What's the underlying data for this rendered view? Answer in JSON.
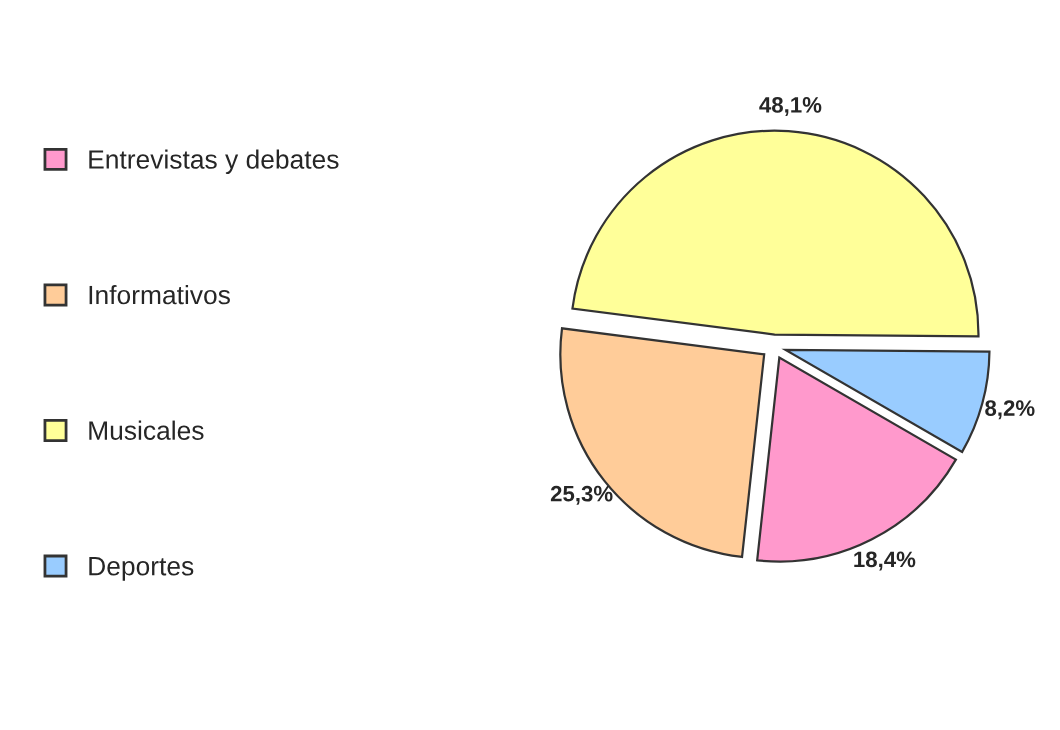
{
  "chart_data": {
    "type": "pie",
    "categories": [
      "Entrevistas y debates",
      "Informativos",
      "Musicales",
      "Deportes"
    ],
    "values": [
      18.4,
      25.3,
      48.1,
      8.2
    ],
    "colors": [
      "#ff99cc",
      "#ffcc99",
      "#ffff99",
      "#99ccff"
    ],
    "value_labels": [
      "18,4%",
      "25,3%",
      "48,1%",
      "8,2%"
    ],
    "legend": "left"
  }
}
